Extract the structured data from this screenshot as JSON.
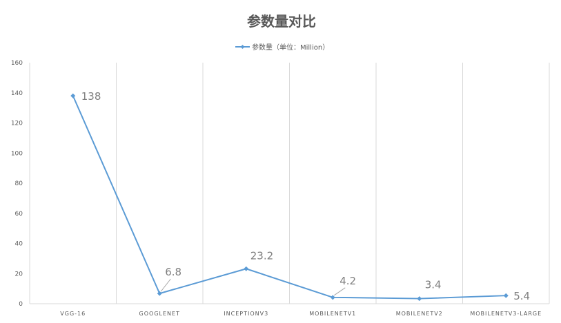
{
  "chart_data": {
    "type": "line",
    "title": "参数量对比",
    "xlabel": "",
    "ylabel": "",
    "categories": [
      "VGG-16",
      "GOOGLENET",
      "INCEPTIONV3",
      "MOBILENETV1",
      "MOBILENETV2",
      "MOBILENETV3-LARGE"
    ],
    "series": [
      {
        "name": "参数量（单位：Million）",
        "values": [
          138,
          6.8,
          23.2,
          4.2,
          3.4,
          5.4
        ],
        "data_labels": [
          "138",
          "6.8",
          "23.2",
          "4.2",
          "3.4",
          "5.4"
        ]
      }
    ],
    "ylim": [
      0,
      160
    ],
    "yticks": [
      0,
      20,
      40,
      60,
      80,
      100,
      120,
      140,
      160
    ],
    "ytick_labels": [
      "0",
      "20",
      "40",
      "60",
      "80",
      "100",
      "120",
      "140",
      "160"
    ],
    "grid": "vertical",
    "legend": "top-center",
    "colors": {
      "line": "#5b9bd5",
      "grid": "#d9d9d9",
      "text": "#595959",
      "label": "#7f7f7f"
    }
  }
}
